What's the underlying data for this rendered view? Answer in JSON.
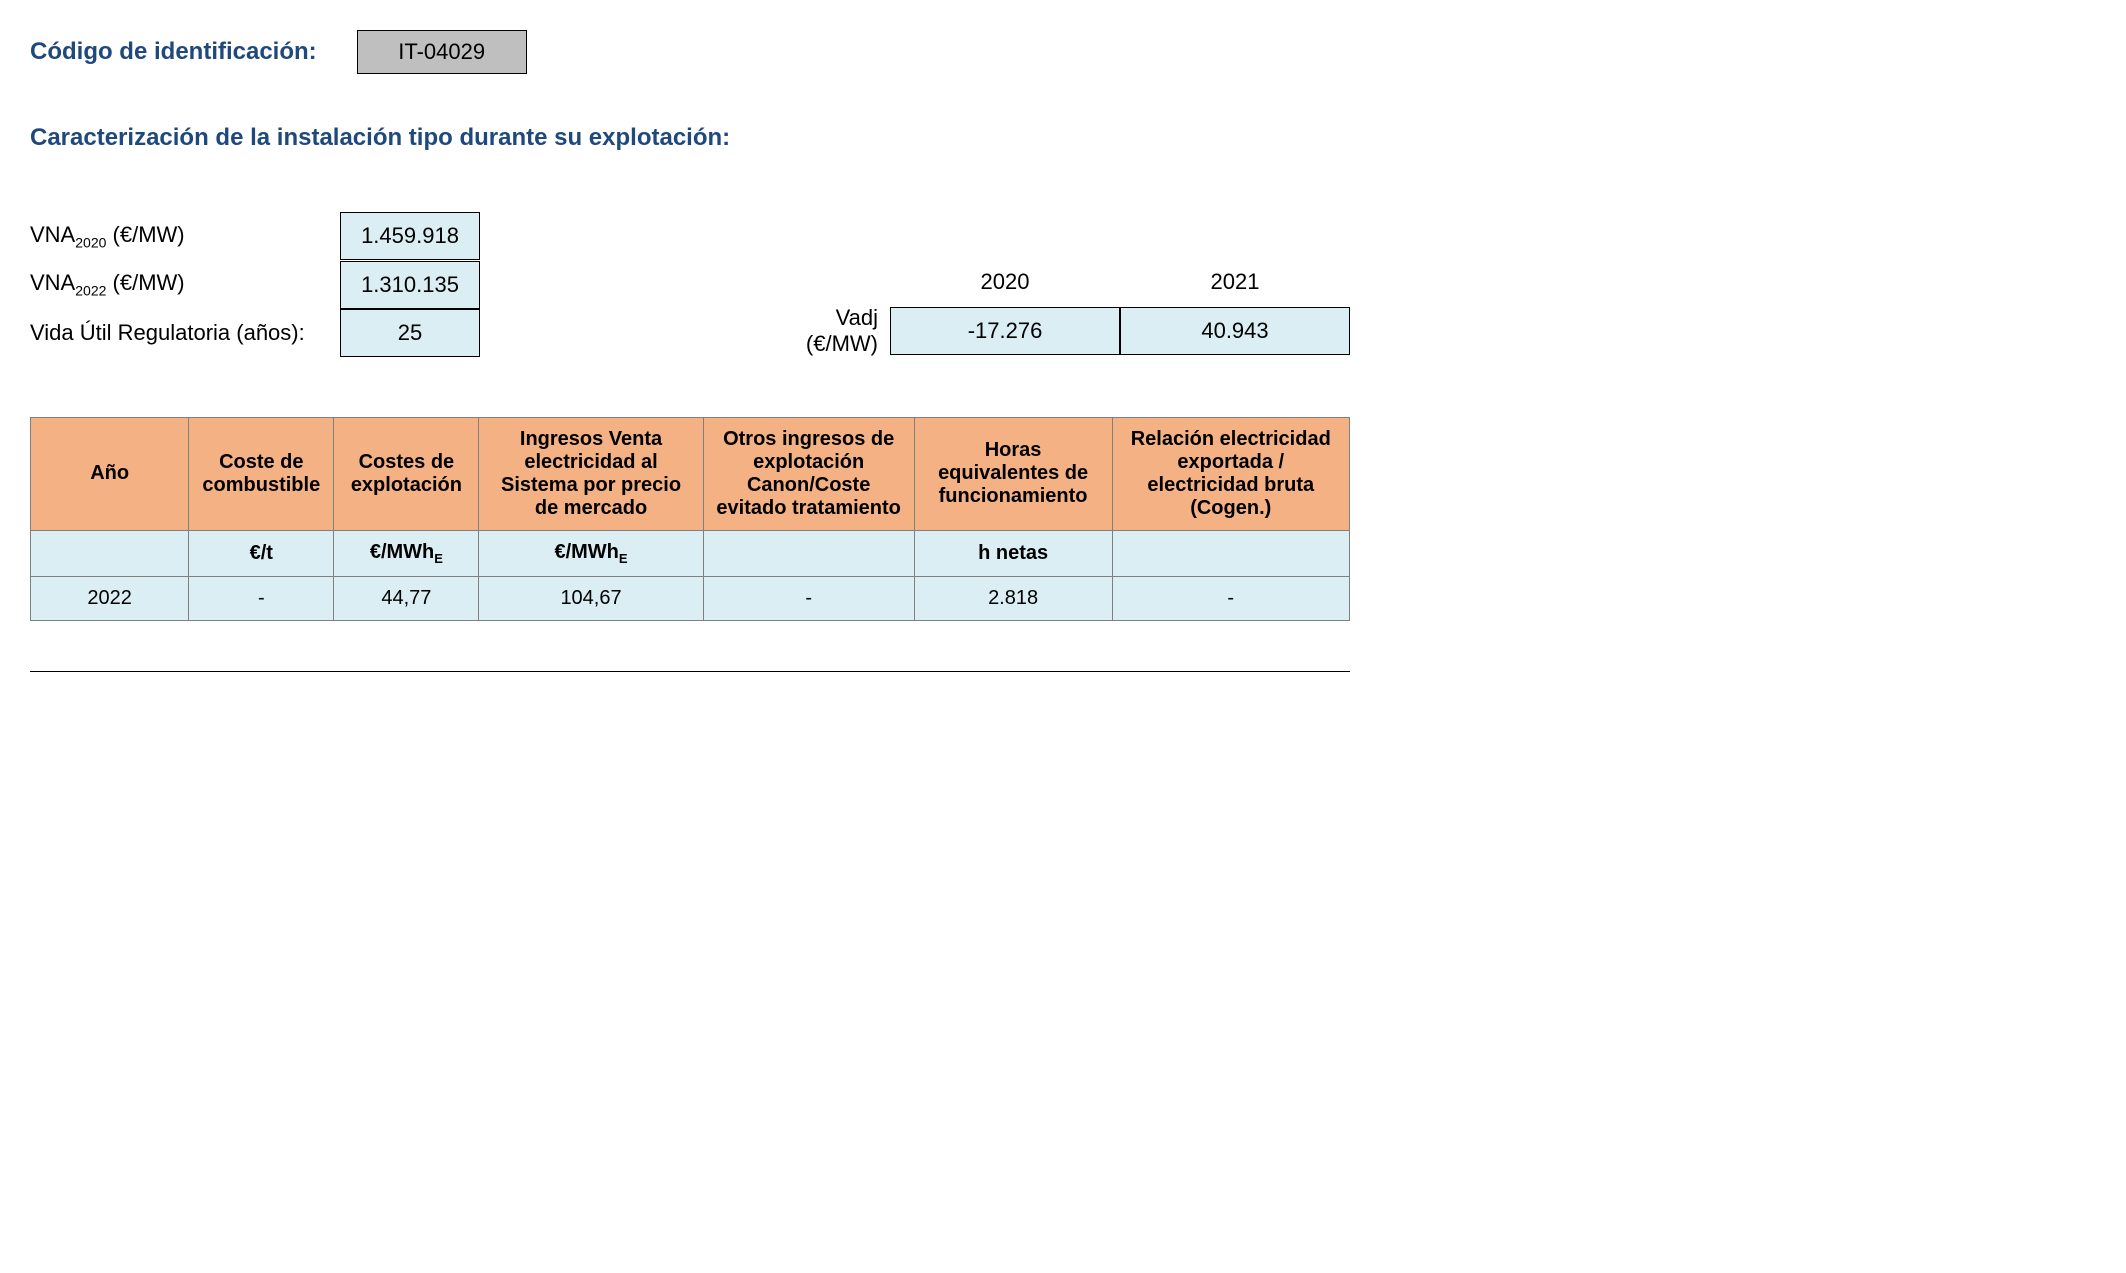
{
  "labels": {
    "codigo": "Código de identificación:",
    "caracterizacion": "Caracterización de la instalación tipo durante su explotación:",
    "vna2020_prefix": "VNA",
    "vna2020_sub": "2020",
    "vna2020_suffix": " (€/MW)",
    "vna2022_prefix": "VNA",
    "vna2022_sub": "2022",
    "vna2022_suffix": " (€/MW)",
    "vida_util": "Vida Útil Regulatoria (años):",
    "vadj": "Vadj (€/MW)"
  },
  "values": {
    "codigo": "IT-04029",
    "vna2020": "1.459.918",
    "vna2022": "1.310.135",
    "vida_util": "25"
  },
  "vadj": {
    "year1": "2020",
    "year2": "2021",
    "val1": "-17.276",
    "val2": "40.943"
  },
  "table": {
    "headers": {
      "ano": "Año",
      "coste_comb": "Coste de combustible",
      "costes_expl": "Costes de explotación",
      "ingresos_venta": "Ingresos Venta electricidad al Sistema por precio de mercado",
      "otros_ingresos": "Otros ingresos de explotación Canon/Coste evitado tratamiento",
      "horas": "Horas equivalentes de funcionamiento",
      "relacion": "Relación electricidad exportada / electricidad bruta (Cogen.)"
    },
    "units": {
      "ano": "",
      "coste_comb": "€/t",
      "costes_expl_prefix": "€/MWh",
      "costes_expl_sub": "E",
      "ingresos_prefix": "€/MWh",
      "ingresos_sub": "E",
      "otros": "",
      "horas": "h netas",
      "relacion": ""
    },
    "row": {
      "ano": "2022",
      "coste_comb": "-",
      "costes_expl": "44,77",
      "ingresos": "104,67",
      "otros": "-",
      "horas": "2.818",
      "relacion": "-"
    },
    "col_widths": [
      "12%",
      "11%",
      "11%",
      "17%",
      "16%",
      "15%",
      "18%"
    ]
  },
  "colors": {
    "heading": "#1f497d",
    "code_box_bg": "#bfbfbf",
    "light_blue_bg": "#daeef3",
    "orange_bg": "#f4b183",
    "border": "#7f7f7f",
    "black": "#000000",
    "white": "#ffffff"
  }
}
